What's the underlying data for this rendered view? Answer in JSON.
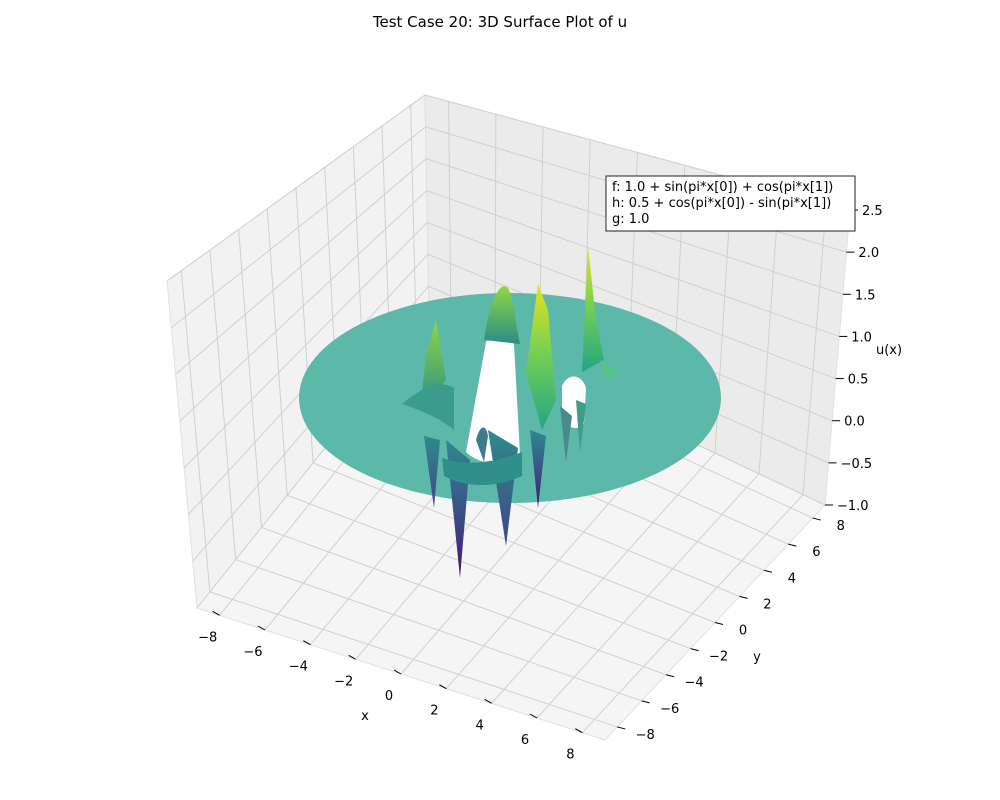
{
  "chart_data": {
    "type": "surface3d",
    "title": "Test Case 20: 3D Surface Plot of u",
    "xlabel": "x",
    "ylabel": "y",
    "zlabel": "u(x)",
    "xlim": [
      -9,
      9
    ],
    "ylim": [
      -9,
      9
    ],
    "zlim": [
      -1.0,
      2.5
    ],
    "xticks": [
      -8,
      -6,
      -4,
      -2,
      0,
      2,
      4,
      6,
      8
    ],
    "yticks": [
      -8,
      -6,
      -4,
      -2,
      0,
      2,
      4,
      6,
      8
    ],
    "zticks": [
      -1.0,
      -0.5,
      0.0,
      0.5,
      1.0,
      1.5,
      2.0,
      2.5
    ],
    "xtick_labels": [
      "−8",
      "−6",
      "−4",
      "−2",
      "0",
      "2",
      "4",
      "6",
      "8"
    ],
    "ytick_labels": [
      "−8",
      "−6",
      "−4",
      "−2",
      "0",
      "2",
      "4",
      "6",
      "8"
    ],
    "ztick_labels": [
      "−1.0",
      "−0.5",
      "0.0",
      "0.5",
      "1.0",
      "1.5",
      "2.0",
      "2.5"
    ],
    "colormap": "viridis",
    "domain": "annulus",
    "domain_outer_radius": 9,
    "domain_inner_radius": 3,
    "boundary_value": 1.0,
    "surface_peaks_u": [
      2.45,
      2.2,
      2.1,
      1.9,
      1.6,
      1.3
    ],
    "surface_troughs_u": [
      -0.65,
      -0.4,
      -0.25,
      0.0
    ],
    "annotation": {
      "lines": [
        "f: 1.0 + sin(pi*x[0]) + cos(pi*x[1])",
        "h: 0.5 + cos(pi*x[0]) - sin(pi*x[1])",
        "g: 1.0"
      ]
    },
    "colors": {
      "pane": "#f2f2f2",
      "grid": "#cccccc",
      "surface_flat": "#5cb8a8"
    }
  }
}
